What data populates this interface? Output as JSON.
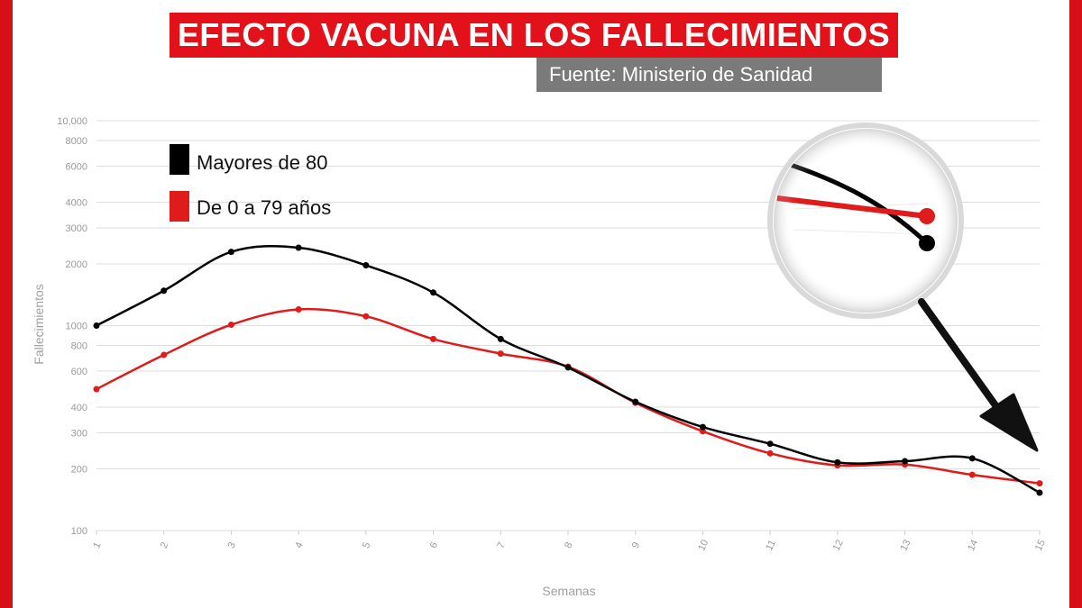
{
  "header": {
    "title": "EFECTO VACUNA EN LOS FALLECIMIENTOS",
    "source": "Fuente: Ministerio de Sanidad"
  },
  "colors": {
    "frame": "#d51016",
    "banner": "#e3111a",
    "source_bg": "#7a7a7a",
    "series_over80": "#000000",
    "series_under80": "#e01b1b"
  },
  "chart_data": {
    "type": "line",
    "xlabel": "Semanas",
    "ylabel": "Fallecimientos",
    "yscale": "log",
    "ylim": [
      100,
      10000
    ],
    "grid": true,
    "legend_position": "top-left",
    "x": [
      1,
      2,
      3,
      4,
      5,
      6,
      7,
      8,
      9,
      10,
      11,
      12,
      13,
      14,
      15
    ],
    "y_ticks": [
      100,
      200,
      300,
      400,
      600,
      800,
      1000,
      2000,
      3000,
      4000,
      6000,
      8000,
      10000
    ],
    "y_tick_labels": [
      "100",
      "200",
      "300",
      "400",
      "600",
      "800",
      "1000",
      "2000",
      "3000",
      "4000",
      "6000",
      "8000",
      "10,000"
    ],
    "series": [
      {
        "name": "Mayores de 80",
        "color": "#000000",
        "values": [
          1000,
          1480,
          2290,
          2400,
          1970,
          1450,
          860,
          625,
          425,
          320,
          265,
          215,
          218,
          225,
          153
        ]
      },
      {
        "name": "De 0 a 79 años",
        "color": "#e01b1b",
        "values": [
          490,
          720,
          1010,
          1200,
          1110,
          860,
          730,
          630,
          420,
          305,
          238,
          208,
          210,
          187,
          170
        ]
      }
    ],
    "inset_icon": "magnifier-zoom-inset",
    "arrow_icon": "arrow-pointer"
  }
}
